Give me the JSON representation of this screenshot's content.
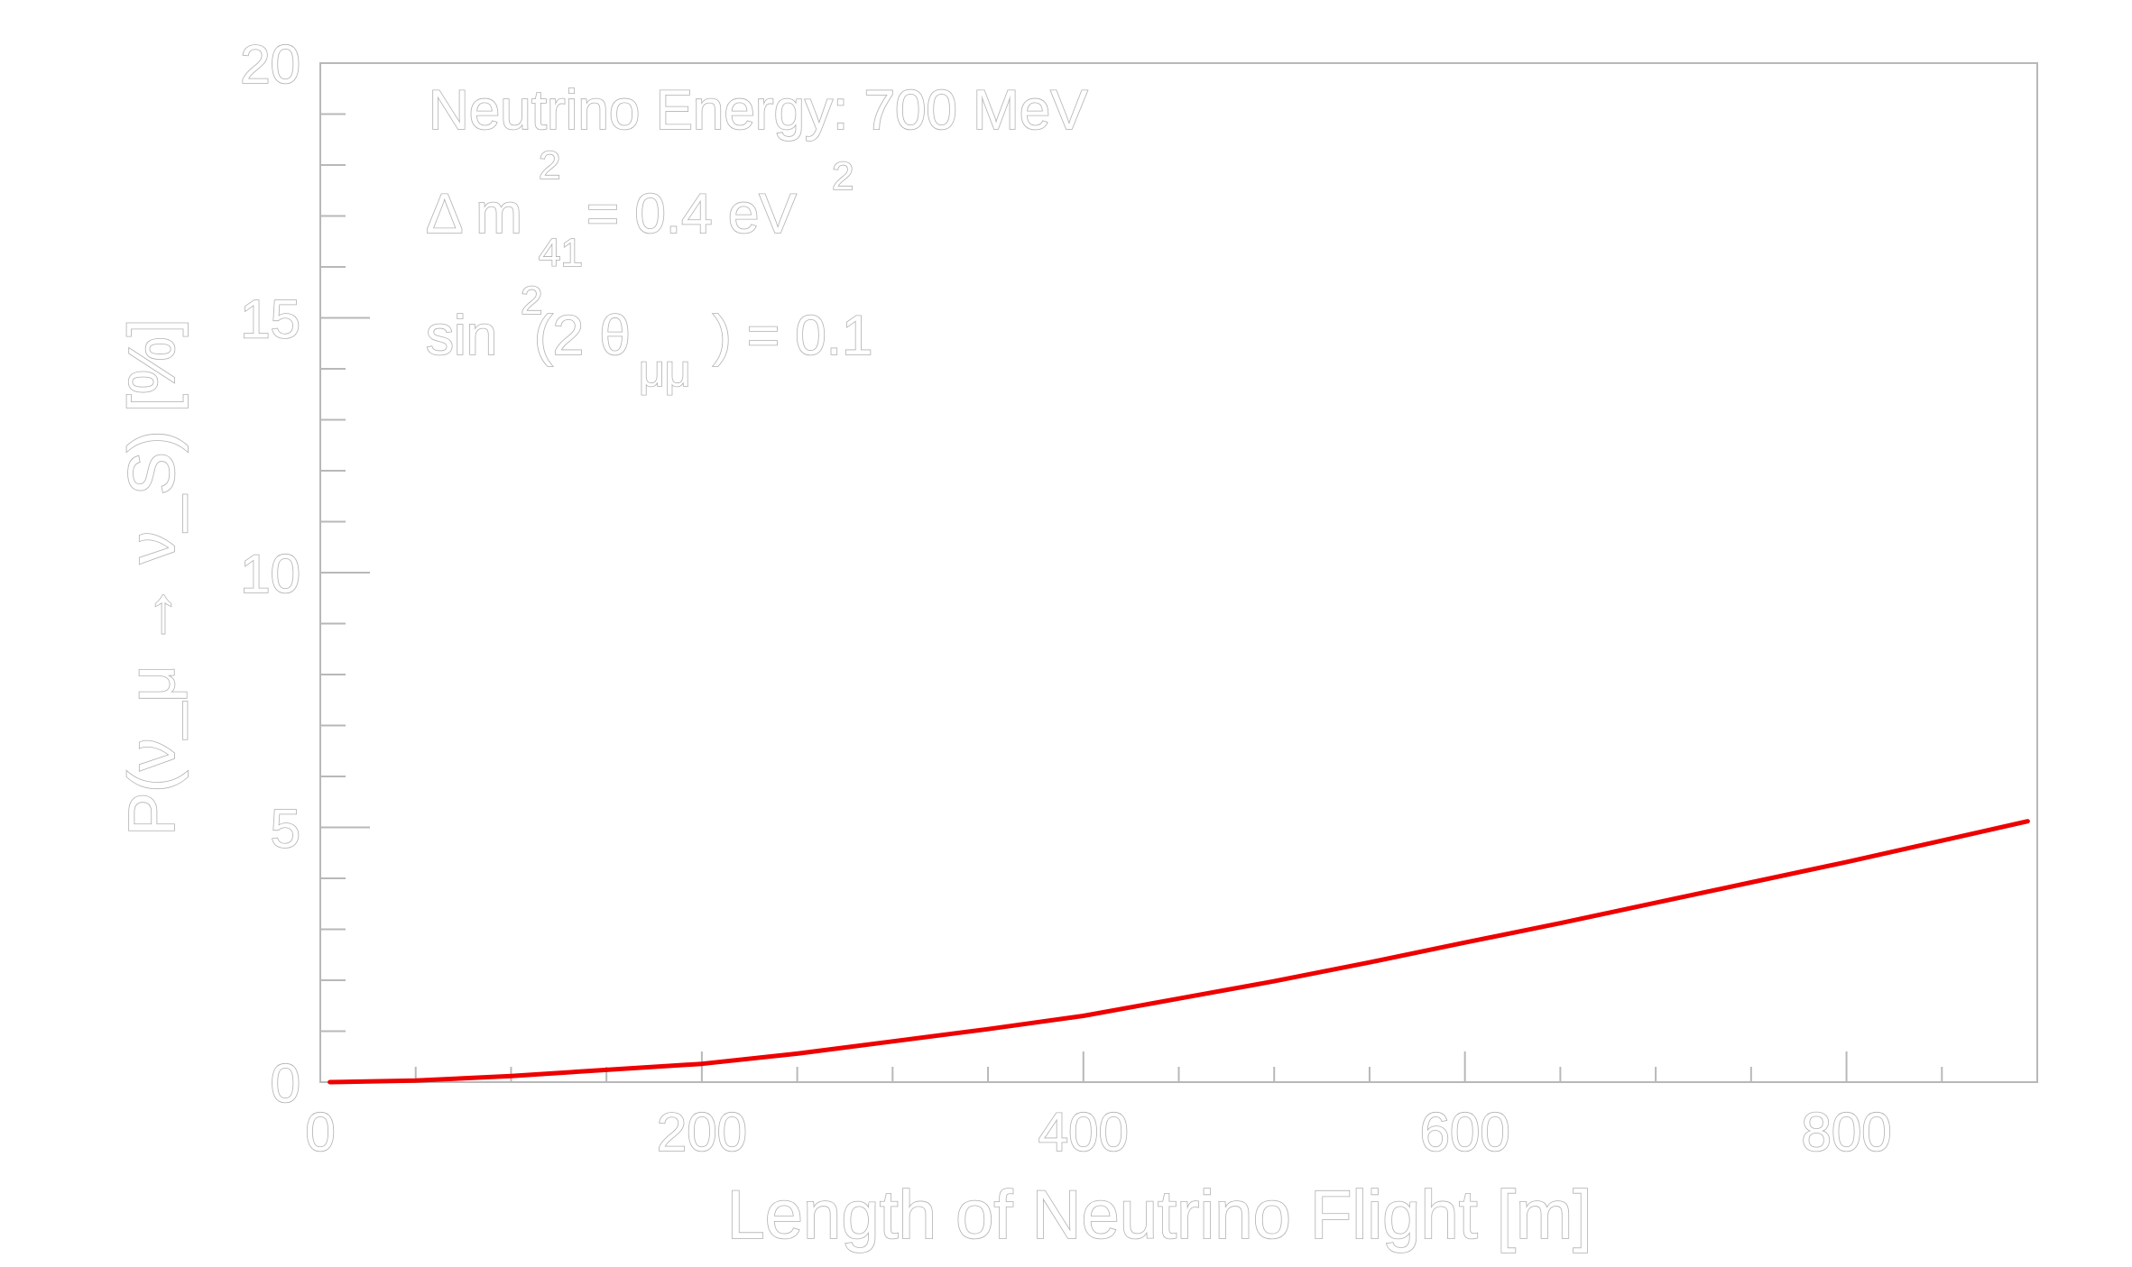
{
  "chart_data": {
    "type": "line",
    "title": "",
    "xlabel": "Length of Neutrino Flight [m]",
    "ylabel": "P(ν_μ → ν_S) [%]",
    "xlim": [
      0,
      900
    ],
    "ylim": [
      0,
      20
    ],
    "x_ticks": [
      "0",
      "200",
      "400",
      "600",
      "800"
    ],
    "y_ticks": [
      "0",
      "5",
      "10",
      "15",
      "20"
    ],
    "grid": false,
    "legend": "none",
    "annotations": {
      "energy": "Neutrino Energy:  700 MeV",
      "dm_prefix": "Δ  m",
      "dm_sup": "2",
      "dm_sub": "41",
      "dm_value": " = 0.4 eV",
      "dm_unit_sup": "2",
      "sin_prefix": "sin",
      "sin_sup": "2",
      "sin_mid": "(2 θ",
      "sin_sub": "μμ",
      "sin_value": " ) = 0.1"
    },
    "series": [
      {
        "color": "#ee0000",
        "x": [
          5,
          50,
          100,
          150,
          200,
          250,
          300,
          350,
          400,
          450,
          500,
          550,
          600,
          650,
          700,
          750,
          800,
          850,
          895
        ],
        "y": [
          0.0,
          0.03,
          0.12,
          0.24,
          0.36,
          0.56,
          0.8,
          1.04,
          1.3,
          1.64,
          1.98,
          2.35,
          2.74,
          3.12,
          3.52,
          3.92,
          4.32,
          4.74,
          5.12
        ]
      }
    ]
  }
}
